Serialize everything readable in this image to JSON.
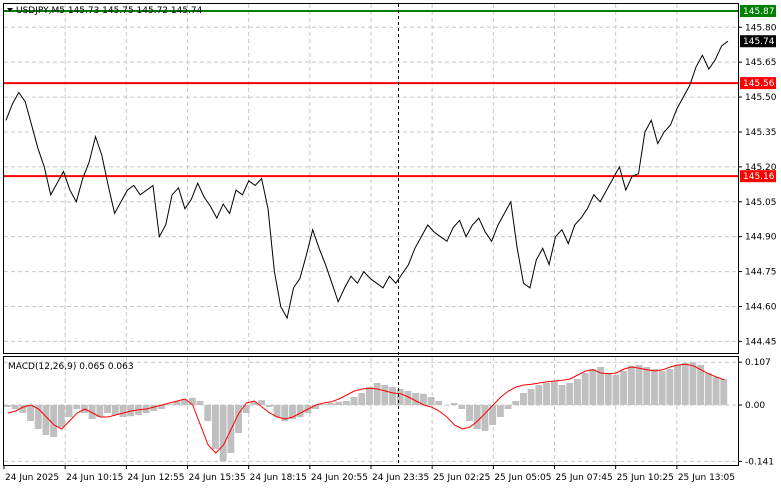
{
  "header": {
    "symbol_line": "USDJPY,M5  145.73 145.75 145.72 145.74",
    "macd_label": "MACD(12,26,9) 0.065 0.063"
  },
  "colors": {
    "background": "#ffffff",
    "price_line": "#000000",
    "support_resistance": "#ff0000",
    "top_level": "#008000",
    "macd_hist": "#c0c0c0",
    "signal_line": "#ff0000",
    "grid": "#c8c8c8"
  },
  "chart_data": [
    {
      "type": "line",
      "title": "USDJPY,M5",
      "ylim": [
        144.4,
        145.9
      ],
      "y_ticks": [
        "145.80",
        "145.65",
        "145.50",
        "145.35",
        "145.20",
        "145.05",
        "144.90",
        "144.75",
        "144.60",
        "144.45"
      ],
      "current_price": "145.74",
      "levels": [
        {
          "value": "145.87",
          "color": "#008000"
        },
        {
          "value": "145.56",
          "color": "#ff0000"
        },
        {
          "value": "145.16",
          "color": "#ff0000"
        }
      ],
      "x_ticks": [
        "24 Jun 2025",
        "24 Jun 10:15",
        "24 Jun 12:55",
        "24 Jun 15:35",
        "24 Jun 18:15",
        "24 Jun 20:55",
        "24 Jun 23:35",
        "25 Jun 02:25",
        "25 Jun 05:05",
        "25 Jun 07:45",
        "25 Jun 10:25",
        "25 Jun 13:05"
      ],
      "series": [
        {
          "values": [
            145.4,
            145.47,
            145.52,
            145.48,
            145.38,
            145.28,
            145.2,
            145.08,
            145.13,
            145.18,
            145.1,
            145.05,
            145.15,
            145.22,
            145.33,
            145.25,
            145.12,
            145.0,
            145.05,
            145.1,
            145.12,
            145.08,
            145.1,
            145.12,
            144.9,
            144.95,
            145.08,
            145.11,
            145.02,
            145.06,
            145.13,
            145.07,
            145.03,
            144.98,
            145.04,
            145.0,
            145.1,
            145.08,
            145.14,
            145.12,
            145.15,
            145.02,
            144.75,
            144.6,
            144.55,
            144.68,
            144.72,
            144.82,
            144.93,
            144.85,
            144.78,
            144.7,
            144.62,
            144.68,
            144.73,
            144.7,
            144.75,
            144.72,
            144.7,
            144.68,
            144.73,
            144.7,
            144.74,
            144.78,
            144.85,
            144.9,
            144.95,
            144.92,
            144.9,
            144.88,
            144.94,
            144.97,
            144.9,
            144.95,
            144.98,
            144.92,
            144.88,
            144.95,
            145.0,
            145.05,
            144.85,
            144.7,
            144.68,
            144.8,
            144.85,
            144.78,
            144.9,
            144.93,
            144.87,
            144.95,
            144.98,
            145.02,
            145.08,
            145.05,
            145.1,
            145.15,
            145.2,
            145.1,
            145.16,
            145.17,
            145.35,
            145.4,
            145.3,
            145.35,
            145.38,
            145.45,
            145.5,
            145.55,
            145.63,
            145.68,
            145.62,
            145.66,
            145.72,
            145.74
          ]
        }
      ]
    },
    {
      "type": "bar",
      "title": "MACD(12,26,9)",
      "ylim": [
        -0.15,
        0.12
      ],
      "y_ticks": [
        "0.107",
        "0.00",
        "-0.141"
      ],
      "series": [
        {
          "name": "MACD",
          "values": [
            -0.005,
            -0.01,
            -0.02,
            -0.04,
            -0.06,
            -0.075,
            -0.08,
            -0.055,
            -0.03,
            -0.01,
            -0.02,
            -0.035,
            -0.03,
            -0.02,
            -0.025,
            -0.03,
            -0.028,
            -0.025,
            -0.02,
            -0.015,
            -0.01,
            0.002,
            0.01,
            0.015,
            0.018,
            0.01,
            -0.04,
            -0.11,
            -0.141,
            -0.12,
            -0.07,
            -0.02,
            0.008,
            0.012,
            -0.005,
            -0.03,
            -0.04,
            -0.035,
            -0.03,
            -0.02,
            -0.01,
            0.002,
            0.005,
            0.008,
            0.01,
            0.02,
            0.03,
            0.045,
            0.055,
            0.05,
            0.045,
            0.04,
            0.035,
            0.03,
            0.028,
            0.02,
            0.01,
            0.0,
            0.005,
            -0.01,
            -0.04,
            -0.06,
            -0.065,
            -0.05,
            -0.03,
            -0.01,
            0.01,
            0.03,
            0.04,
            0.05,
            0.055,
            0.06,
            0.05,
            0.055,
            0.065,
            0.08,
            0.09,
            0.095,
            0.08,
            0.075,
            0.085,
            0.098,
            0.1,
            0.095,
            0.09,
            0.085,
            0.09,
            0.1,
            0.105,
            0.107,
            0.1,
            0.08,
            0.07,
            0.065
          ]
        },
        {
          "name": "Signal",
          "values": [
            -0.02,
            -0.015,
            -0.005,
            0.0,
            -0.01,
            -0.03,
            -0.05,
            -0.06,
            -0.04,
            -0.02,
            -0.01,
            -0.02,
            -0.03,
            -0.03,
            -0.025,
            -0.02,
            -0.015,
            -0.012,
            -0.01,
            -0.005,
            0.0,
            0.005,
            0.01,
            0.015,
            0.0,
            -0.05,
            -0.1,
            -0.12,
            -0.1,
            -0.06,
            -0.02,
            0.005,
            0.01,
            -0.005,
            -0.02,
            -0.03,
            -0.035,
            -0.03,
            -0.02,
            -0.01,
            0.0,
            0.005,
            0.008,
            0.015,
            0.025,
            0.035,
            0.04,
            0.042,
            0.04,
            0.035,
            0.03,
            0.028,
            0.02,
            0.01,
            0.0,
            -0.005,
            -0.015,
            -0.03,
            -0.05,
            -0.06,
            -0.055,
            -0.04,
            -0.02,
            0.0,
            0.02,
            0.035,
            0.045,
            0.05,
            0.052,
            0.055,
            0.058,
            0.06,
            0.062,
            0.065,
            0.075,
            0.085,
            0.088,
            0.08,
            0.078,
            0.08,
            0.09,
            0.095,
            0.092,
            0.088,
            0.085,
            0.088,
            0.095,
            0.1,
            0.102,
            0.098,
            0.088,
            0.078,
            0.07,
            0.063
          ]
        }
      ]
    }
  ]
}
